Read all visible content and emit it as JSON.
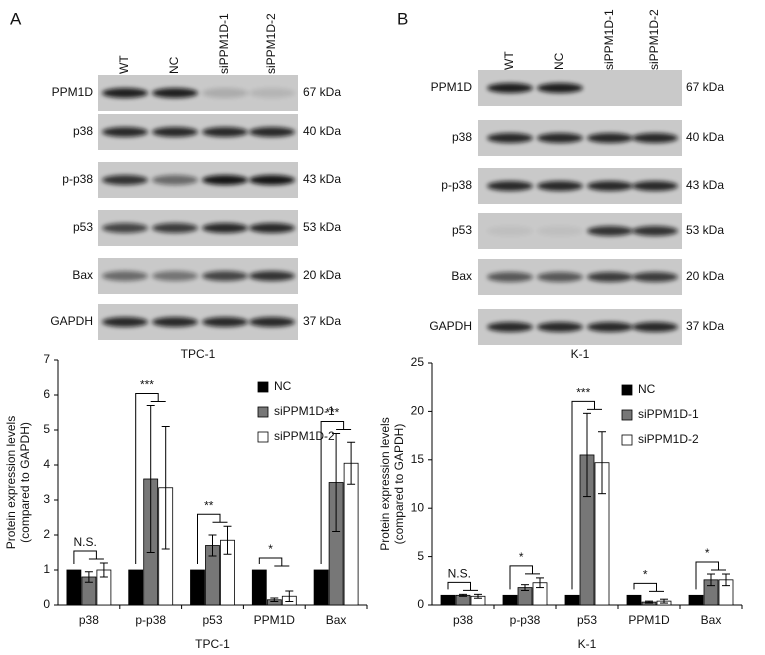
{
  "panels": [
    {
      "label": "A",
      "lanes": [
        "WT",
        "NC",
        "siPPM1D-1",
        "siPPM1D-2"
      ],
      "rows": [
        {
          "protein": "PPM1D",
          "kda": "67 kDa"
        },
        {
          "protein": "p38",
          "kda": "40 kDa"
        },
        {
          "protein": "p-p38",
          "kda": "43 kDa"
        },
        {
          "protein": "p53",
          "kda": "53 kDa"
        },
        {
          "protein": "Bax",
          "kda": "20 kDa"
        },
        {
          "protein": "GAPDH",
          "kda": "37 kDa"
        }
      ],
      "caption": "TPC-1"
    },
    {
      "label": "B",
      "lanes": [
        "WT",
        "NC",
        "siPPM1D-1",
        "siPPM1D-2"
      ],
      "rows": [
        {
          "protein": "PPM1D",
          "kda": "67 kDa"
        },
        {
          "protein": "p38",
          "kda": "40 kDa"
        },
        {
          "protein": "p-p38",
          "kda": "43 kDa"
        },
        {
          "protein": "p53",
          "kda": "53 kDa"
        },
        {
          "protein": "Bax",
          "kda": "20 kDa"
        },
        {
          "protein": "GAPDH",
          "kda": "37 kDa"
        }
      ],
      "caption": "K-1"
    }
  ],
  "chart_data": [
    {
      "type": "bar",
      "xlabel": "TPC-1",
      "ylabel": [
        "Protein expression levels",
        "(compared to GAPDH)"
      ],
      "categories": [
        "p38",
        "p-p38",
        "p53",
        "PPM1D",
        "Bax"
      ],
      "series": [
        {
          "name": "NC",
          "color": "#000000",
          "values": [
            1,
            1,
            1,
            1,
            1
          ],
          "errors": [
            0,
            0,
            0,
            0,
            0
          ]
        },
        {
          "name": "siPPM1D-1",
          "color": "#777777",
          "values": [
            0.8,
            3.6,
            1.7,
            0.15,
            3.5
          ],
          "errors": [
            0.15,
            2.1,
            0.3,
            0.05,
            1.4
          ]
        },
        {
          "name": "siPPM1D-2",
          "color": "#ffffff",
          "values": [
            1.0,
            3.35,
            1.85,
            0.25,
            4.05
          ],
          "errors": [
            0.2,
            1.75,
            0.4,
            0.15,
            0.6
          ]
        }
      ],
      "annotations": [
        "N.S.",
        "***",
        "**",
        "*",
        "***"
      ],
      "ylim": [
        0,
        7
      ],
      "yticks": [
        0,
        1,
        2,
        3,
        4,
        5,
        6,
        7
      ],
      "legend": "upper right"
    },
    {
      "type": "bar",
      "xlabel": "K-1",
      "ylabel": [
        "Protein expression levels",
        "(compared to GAPDH)"
      ],
      "categories": [
        "p38",
        "p-p38",
        "p53",
        "PPM1D",
        "Bax"
      ],
      "series": [
        {
          "name": "NC",
          "color": "#000000",
          "values": [
            1,
            1,
            1,
            1,
            1
          ],
          "errors": [
            0,
            0,
            0,
            0,
            0
          ]
        },
        {
          "name": "siPPM1D-1",
          "color": "#777777",
          "values": [
            1.0,
            1.8,
            15.5,
            0.3,
            2.6
          ],
          "errors": [
            0.1,
            0.3,
            4.3,
            0.1,
            0.6
          ]
        },
        {
          "name": "siPPM1D-2",
          "color": "#ffffff",
          "values": [
            0.9,
            2.3,
            14.7,
            0.4,
            2.6
          ],
          "errors": [
            0.2,
            0.5,
            3.2,
            0.2,
            0.6
          ]
        }
      ],
      "annotations": [
        "N.S.",
        "*",
        "***",
        "*",
        "*"
      ],
      "ylim": [
        0,
        25
      ],
      "yticks": [
        0,
        5,
        10,
        15,
        20,
        25
      ],
      "legend": "upper right"
    }
  ]
}
